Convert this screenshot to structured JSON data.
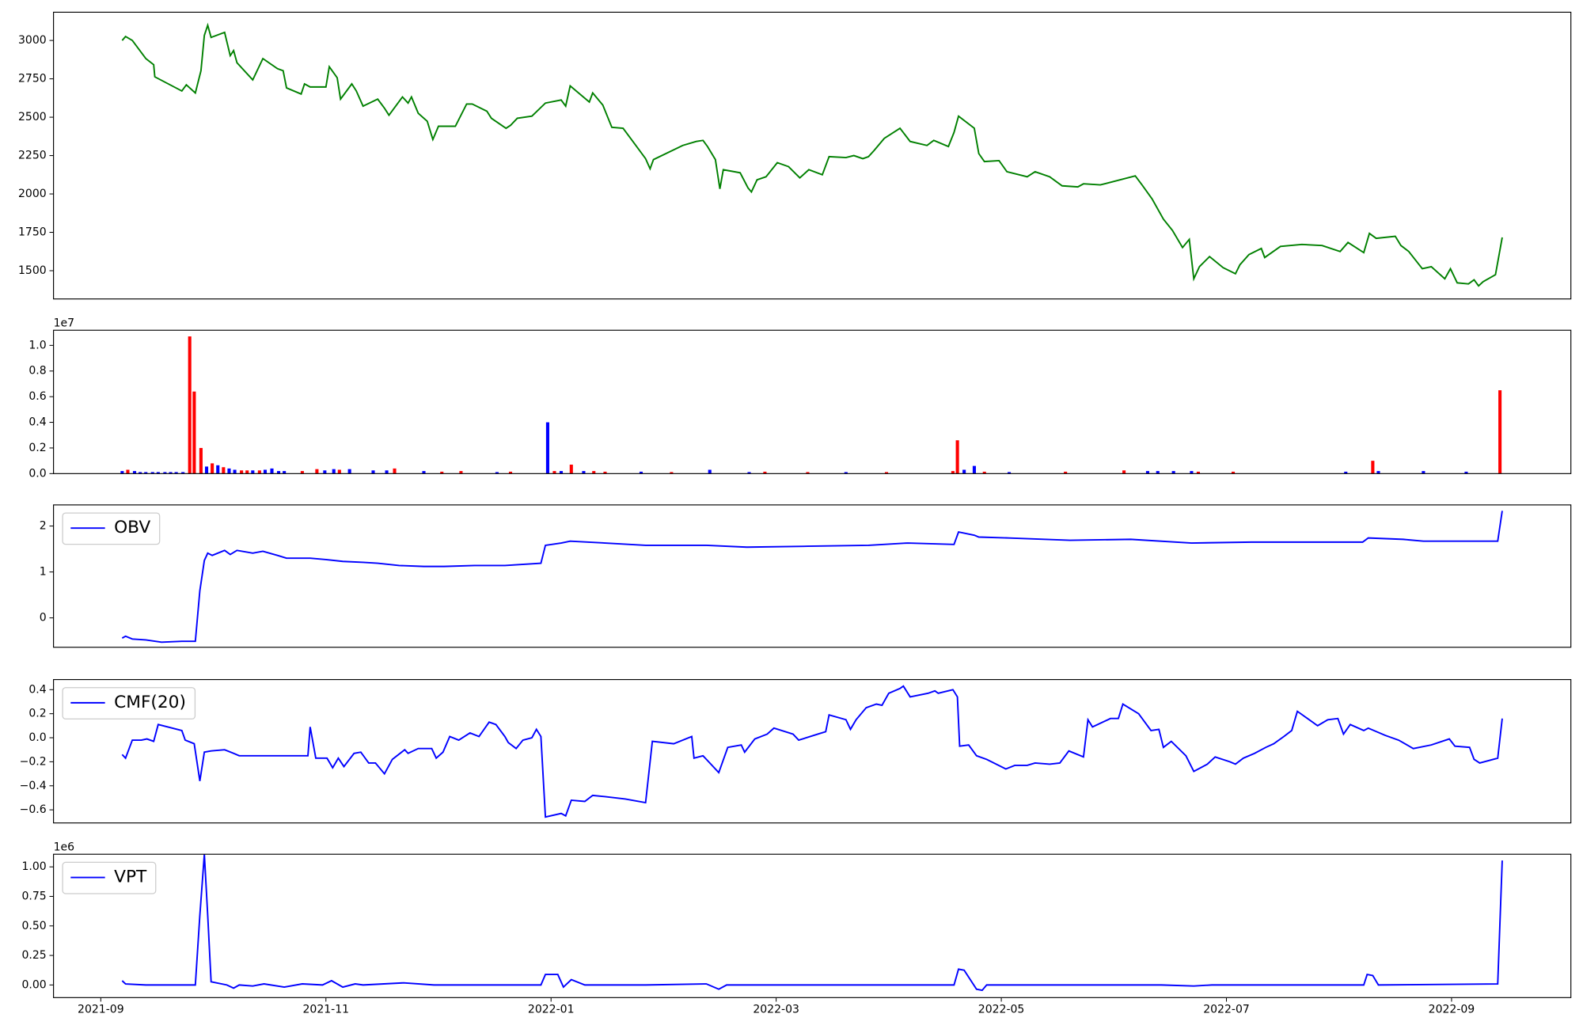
{
  "chart_data": [
    {
      "type": "line",
      "color": "green",
      "x": [
        0.19,
        0.22,
        0.28,
        0.4,
        0.47,
        0.48,
        0.72,
        0.76,
        0.84,
        0.89,
        0.92,
        0.95,
        0.98,
        1.1,
        1.15,
        1.18,
        1.21,
        1.35,
        1.44,
        1.57,
        1.62,
        1.65,
        1.78,
        1.81,
        1.86,
        2.0,
        2.03,
        2.1,
        2.13,
        2.23,
        2.27,
        2.33,
        2.46,
        2.52,
        2.56,
        2.68,
        2.73,
        2.76,
        2.82,
        2.9,
        2.95,
        3.0,
        3.15,
        3.25,
        3.3,
        3.43,
        3.47,
        3.6,
        3.64,
        3.7,
        3.83,
        3.95,
        4.09,
        4.13,
        4.17,
        4.34,
        4.37,
        4.46,
        4.54,
        4.64,
        4.74,
        4.84,
        4.88,
        4.91,
        5.17,
        5.29,
        5.35,
        5.39,
        5.46,
        5.5,
        5.53,
        5.68,
        5.75,
        5.78,
        5.83,
        5.91,
        6.01,
        6.11,
        6.21,
        6.29,
        6.41,
        6.47,
        6.62,
        6.69,
        6.77,
        6.82,
        6.87,
        6.96,
        7.1,
        7.19,
        7.34,
        7.4,
        7.53,
        7.58,
        7.62,
        7.76,
        7.8,
        7.85,
        7.98,
        8.05,
        8.23,
        8.3,
        8.43,
        8.54,
        8.68,
        8.73,
        8.88,
        9.19,
        9.25,
        9.34,
        9.44,
        9.52,
        9.61,
        9.67,
        9.71,
        9.76,
        9.85,
        9.97,
        10.08,
        10.12,
        10.2,
        10.31,
        10.34,
        10.48,
        10.67,
        10.85,
        11.01,
        11.08,
        11.22,
        11.27,
        11.33,
        11.5,
        11.55,
        11.62,
        11.74,
        11.82,
        11.94,
        11.99,
        12.05,
        12.15,
        12.2,
        12.24,
        12.28,
        12.39,
        12.45
      ],
      "values": [
        3000,
        3026,
        3000,
        2882,
        2842,
        2763,
        2671,
        2711,
        2658,
        2803,
        3033,
        3099,
        3020,
        3053,
        2901,
        2934,
        2855,
        2743,
        2882,
        2816,
        2803,
        2691,
        2651,
        2717,
        2697,
        2697,
        2829,
        2757,
        2618,
        2717,
        2671,
        2572,
        2618,
        2559,
        2513,
        2632,
        2592,
        2632,
        2526,
        2474,
        2355,
        2441,
        2441,
        2586,
        2586,
        2539,
        2493,
        2428,
        2447,
        2493,
        2507,
        2592,
        2612,
        2572,
        2704,
        2599,
        2658,
        2579,
        2434,
        2428,
        2329,
        2230,
        2164,
        2224,
        2316,
        2342,
        2349,
        2309,
        2224,
        2033,
        2158,
        2138,
        2039,
        2013,
        2092,
        2112,
        2204,
        2178,
        2105,
        2158,
        2125,
        2243,
        2237,
        2250,
        2230,
        2243,
        2283,
        2362,
        2428,
        2342,
        2316,
        2349,
        2309,
        2401,
        2507,
        2428,
        2263,
        2211,
        2217,
        2145,
        2112,
        2145,
        2112,
        2053,
        2046,
        2066,
        2059,
        2118,
        2059,
        1967,
        1836,
        1763,
        1651,
        1704,
        1447,
        1526,
        1592,
        1520,
        1480,
        1539,
        1605,
        1645,
        1586,
        1658,
        1671,
        1664,
        1625,
        1684,
        1618,
        1743,
        1711,
        1724,
        1664,
        1625,
        1513,
        1526,
        1447,
        1513,
        1421,
        1414,
        1441,
        1401,
        1428,
        1474,
        1717
      ],
      "xlim": [
        -0.42,
        13.06
      ],
      "ylim": [
        1316,
        3184
      ],
      "yticks": [
        1500,
        1750,
        2000,
        2250,
        2500,
        2750,
        3000
      ]
    },
    {
      "type": "bar",
      "y_offset_label": "1e7",
      "x": [
        0.19,
        0.24,
        0.3,
        0.35,
        0.4,
        0.46,
        0.51,
        0.57,
        0.62,
        0.67,
        0.73,
        0.79,
        0.83,
        0.89,
        0.94,
        0.99,
        1.04,
        1.09,
        1.14,
        1.19,
        1.25,
        1.3,
        1.35,
        1.41,
        1.46,
        1.52,
        1.58,
        1.63,
        1.79,
        1.92,
        1.99,
        2.07,
        2.12,
        2.21,
        2.42,
        2.54,
        2.61,
        2.87,
        3.03,
        3.2,
        3.52,
        3.64,
        3.97,
        4.03,
        4.09,
        4.18,
        4.29,
        4.38,
        4.48,
        4.8,
        5.07,
        5.41,
        5.76,
        5.9,
        6.28,
        6.62,
        6.98,
        7.57,
        7.61,
        7.67,
        7.76,
        7.85,
        8.07,
        8.57,
        9.09,
        9.3,
        9.39,
        9.53,
        9.69,
        9.75,
        10.06,
        11.06,
        11.3,
        11.35,
        11.75,
        12.13,
        12.43
      ],
      "values": [
        200000,
        300000,
        200000,
        120000,
        120000,
        120000,
        120000,
        120000,
        120000,
        120000,
        120000,
        10700000,
        6400000,
        2000000,
        550000,
        800000,
        650000,
        500000,
        400000,
        300000,
        250000,
        250000,
        250000,
        250000,
        300000,
        400000,
        200000,
        200000,
        200000,
        350000,
        250000,
        350000,
        300000,
        350000,
        250000,
        250000,
        400000,
        200000,
        150000,
        200000,
        120000,
        150000,
        4000000,
        200000,
        200000,
        700000,
        200000,
        200000,
        150000,
        150000,
        120000,
        300000,
        120000,
        150000,
        120000,
        120000,
        120000,
        200000,
        2600000,
        300000,
        600000,
        150000,
        120000,
        150000,
        250000,
        200000,
        200000,
        200000,
        200000,
        150000,
        150000,
        150000,
        1000000,
        200000,
        200000,
        150000,
        6500000
      ],
      "colors": [
        "blue",
        "red",
        "blue",
        "blue",
        "blue",
        "blue",
        "blue",
        "blue",
        "blue",
        "blue",
        "blue",
        "red",
        "red",
        "red",
        "blue",
        "red",
        "blue",
        "red",
        "blue",
        "blue",
        "red",
        "red",
        "blue",
        "red",
        "blue",
        "blue",
        "blue",
        "blue",
        "red",
        "red",
        "blue",
        "blue",
        "red",
        "blue",
        "blue",
        "blue",
        "red",
        "blue",
        "red",
        "red",
        "blue",
        "red",
        "blue",
        "red",
        "blue",
        "red",
        "blue",
        "red",
        "red",
        "blue",
        "red",
        "blue",
        "blue",
        "red",
        "red",
        "blue",
        "red",
        "red",
        "red",
        "blue",
        "blue",
        "red",
        "blue",
        "red",
        "red",
        "blue",
        "blue",
        "blue",
        "blue",
        "red",
        "red",
        "blue",
        "red",
        "blue",
        "blue",
        "blue",
        "red"
      ],
      "xlim": [
        -0.42,
        13.06
      ],
      "ylim": [
        0,
        11180000
      ],
      "yticks": [
        {
          "value": 0,
          "label": "0.0"
        },
        {
          "value": 2000000,
          "label": "0.2"
        },
        {
          "value": 4000000,
          "label": "0.4"
        },
        {
          "value": 6000000,
          "label": "0.6"
        },
        {
          "value": 8000000,
          "label": "0.8"
        },
        {
          "value": 10000000,
          "label": "1.0"
        }
      ]
    },
    {
      "type": "line",
      "legend": "upper left",
      "x": [
        0.19,
        0.22,
        0.28,
        0.4,
        0.54,
        0.72,
        0.84,
        0.88,
        0.92,
        0.95,
        0.99,
        1.1,
        1.15,
        1.21,
        1.35,
        1.44,
        1.57,
        1.65,
        1.86,
        2.0,
        2.15,
        2.33,
        2.46,
        2.65,
        2.87,
        3.05,
        3.32,
        3.59,
        3.91,
        3.95,
        4.09,
        4.17,
        4.48,
        4.84,
        5.38,
        5.74,
        6.28,
        6.82,
        7.17,
        7.58,
        7.62,
        7.76,
        7.8,
        8.07,
        8.61,
        9.15,
        9.69,
        10.22,
        10.76,
        11.21,
        11.26,
        11.57,
        11.75,
        12.41,
        12.45
      ],
      "series": [
        {
          "name": "OBV",
          "color": "blue",
          "values": [
            -4400000,
            -4000000,
            -4600000,
            -4800000,
            -5300000,
            -5100000,
            -5100000,
            5900000,
            12500000,
            14100000,
            13600000,
            14700000,
            13800000,
            14700000,
            14100000,
            14500000,
            13600000,
            13000000,
            13000000,
            12700000,
            12300000,
            12100000,
            11900000,
            11400000,
            11200000,
            11200000,
            11400000,
            11400000,
            11900000,
            15800000,
            16300000,
            16700000,
            16300000,
            15800000,
            15800000,
            15400000,
            15600000,
            15800000,
            16300000,
            16000000,
            18700000,
            18000000,
            17600000,
            17400000,
            16900000,
            17100000,
            16300000,
            16500000,
            16500000,
            16500000,
            17400000,
            17100000,
            16700000,
            16700000,
            23300000
          ]
        }
      ],
      "xlim": [
        -0.42,
        13.06
      ],
      "ylim": [
        -6400000,
        24600000
      ],
      "yticks": [
        0,
        {
          "value": 10000000,
          "label": "1"
        },
        {
          "value": 20000000,
          "label": "2"
        }
      ]
    },
    {
      "type": "line",
      "legend": "upper left",
      "x": [
        0.19,
        0.22,
        0.28,
        0.36,
        0.41,
        0.47,
        0.51,
        0.72,
        0.75,
        0.83,
        0.88,
        0.92,
        0.98,
        1.1,
        1.18,
        1.23,
        1.43,
        1.66,
        1.84,
        1.86,
        1.91,
        2.01,
        2.06,
        2.11,
        2.16,
        2.25,
        2.31,
        2.38,
        2.44,
        2.52,
        2.59,
        2.7,
        2.73,
        2.82,
        2.94,
        2.98,
        3.04,
        3.1,
        3.18,
        3.28,
        3.36,
        3.45,
        3.51,
        3.59,
        3.62,
        3.69,
        3.75,
        3.83,
        3.87,
        3.91,
        3.95,
        4.09,
        4.13,
        4.18,
        4.3,
        4.37,
        4.48,
        4.66,
        4.84,
        4.9,
        5.09,
        5.25,
        5.27,
        5.35,
        5.49,
        5.57,
        5.69,
        5.72,
        5.81,
        5.92,
        5.98,
        6.15,
        6.2,
        6.37,
        6.44,
        6.47,
        6.62,
        6.66,
        6.71,
        6.8,
        6.89,
        6.94,
        7.0,
        7.1,
        7.13,
        7.19,
        7.35,
        7.41,
        7.44,
        7.57,
        7.61,
        7.63,
        7.71,
        7.78,
        7.87,
        8.04,
        8.12,
        8.23,
        8.3,
        8.43,
        8.52,
        8.6,
        8.73,
        8.77,
        8.81,
        8.97,
        9.04,
        9.08,
        9.22,
        9.33,
        9.4,
        9.44,
        9.51,
        9.64,
        9.71,
        9.83,
        9.9,
        10.03,
        10.08,
        10.15,
        10.25,
        10.35,
        10.42,
        10.51,
        10.58,
        10.63,
        10.81,
        10.9,
        10.99,
        11.04,
        11.1,
        11.22,
        11.26,
        11.41,
        11.53,
        11.66,
        11.82,
        11.98,
        12.03,
        12.16,
        12.2,
        12.25,
        12.41,
        12.45
      ],
      "series": [
        {
          "name": "CMF(20)",
          "color": "blue",
          "values": [
            -0.14,
            -0.17,
            -0.02,
            -0.02,
            -0.01,
            -0.03,
            0.11,
            0.06,
            -0.02,
            -0.05,
            -0.36,
            -0.12,
            -0.11,
            -0.1,
            -0.13,
            -0.15,
            -0.15,
            -0.15,
            -0.15,
            0.09,
            -0.17,
            -0.17,
            -0.25,
            -0.17,
            -0.24,
            -0.13,
            -0.12,
            -0.21,
            -0.21,
            -0.3,
            -0.18,
            -0.1,
            -0.13,
            -0.09,
            -0.09,
            -0.17,
            -0.12,
            0.01,
            -0.02,
            0.04,
            0.01,
            0.13,
            0.11,
            0.01,
            -0.04,
            -0.09,
            -0.02,
            0.0,
            0.07,
            0.01,
            -0.66,
            -0.63,
            -0.65,
            -0.52,
            -0.53,
            -0.48,
            -0.49,
            -0.51,
            -0.54,
            -0.03,
            -0.05,
            0.01,
            -0.17,
            -0.15,
            -0.29,
            -0.08,
            -0.06,
            -0.12,
            -0.01,
            0.03,
            0.08,
            0.03,
            -0.02,
            0.03,
            0.05,
            0.19,
            0.15,
            0.07,
            0.15,
            0.25,
            0.28,
            0.27,
            0.37,
            0.41,
            0.43,
            0.34,
            0.37,
            0.39,
            0.37,
            0.4,
            0.34,
            -0.07,
            -0.06,
            -0.15,
            -0.18,
            -0.26,
            -0.23,
            -0.23,
            -0.21,
            -0.22,
            -0.21,
            -0.11,
            -0.16,
            0.15,
            0.09,
            0.16,
            0.16,
            0.28,
            0.2,
            0.06,
            0.07,
            -0.08,
            -0.03,
            -0.15,
            -0.28,
            -0.22,
            -0.16,
            -0.2,
            -0.22,
            -0.17,
            -0.13,
            -0.08,
            -0.05,
            0.01,
            0.06,
            0.22,
            0.1,
            0.15,
            0.16,
            0.03,
            0.11,
            0.06,
            0.08,
            0.02,
            -0.02,
            -0.09,
            -0.06,
            -0.01,
            -0.07,
            -0.08,
            -0.18,
            -0.21,
            -0.17,
            0.16
          ]
        }
      ],
      "xlim": [
        -0.42,
        13.06
      ],
      "ylim": [
        -0.709,
        0.484
      ],
      "yticks": [
        {
          "value": -0.6,
          "label": "−0.6"
        },
        {
          "value": -0.4,
          "label": "−0.4"
        },
        {
          "value": -0.2,
          "label": "−0.2"
        },
        {
          "value": 0,
          "label": "0.0"
        },
        0.2,
        0.4
      ]
    },
    {
      "type": "line",
      "legend": "upper left",
      "y_offset_label": "1e6",
      "x": [
        0.19,
        0.22,
        0.4,
        0.84,
        0.88,
        0.92,
        0.95,
        0.98,
        1.12,
        1.18,
        1.23,
        1.35,
        1.45,
        1.63,
        1.79,
        1.97,
        2.05,
        2.15,
        2.26,
        2.33,
        2.69,
        2.96,
        3.91,
        3.95,
        4.06,
        4.11,
        4.18,
        4.3,
        4.84,
        5.38,
        5.49,
        5.56,
        7.58,
        7.62,
        7.67,
        7.78,
        7.83,
        7.87,
        9.42,
        9.71,
        9.87,
        11.22,
        11.25,
        11.3,
        11.35,
        12.41,
        12.45
      ],
      "series": [
        {
          "name": "VPT",
          "color": "blue",
          "values": [
            36000,
            9000,
            0,
            0,
            589000,
            1107000,
            589000,
            27000,
            0,
            -27000,
            0,
            -9000,
            9000,
            -18000,
            9000,
            0,
            36000,
            -18000,
            9000,
            0,
            18000,
            0,
            0,
            89000,
            89000,
            -18000,
            45000,
            0,
            0,
            9000,
            -36000,
            0,
            0,
            134000,
            125000,
            -36000,
            -45000,
            0,
            0,
            -9000,
            0,
            0,
            89000,
            80000,
            0,
            9000,
            1054000
          ]
        }
      ],
      "xlim": [
        -0.42,
        13.06
      ],
      "ylim": [
        -107000,
        1107000
      ],
      "yticks": [
        {
          "value": 0,
          "label": "0.00"
        },
        {
          "value": 250000,
          "label": "0.25"
        },
        {
          "value": 500000,
          "label": "0.50"
        },
        {
          "value": 750000,
          "label": "0.75"
        },
        {
          "value": 1000000,
          "label": "1.00"
        }
      ],
      "xticks": [
        {
          "value": 0,
          "label": "2021-09"
        },
        {
          "value": 2,
          "label": "2021-11"
        },
        {
          "value": 4,
          "label": "2022-01"
        },
        {
          "value": 6,
          "label": "2022-03"
        },
        {
          "value": 8,
          "label": "2022-05"
        },
        {
          "value": 10,
          "label": "2022-07"
        },
        {
          "value": 12,
          "label": "2022-09"
        }
      ]
    }
  ]
}
